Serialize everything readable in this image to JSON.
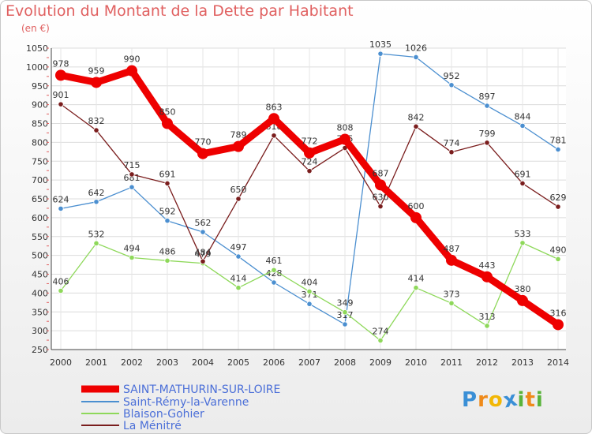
{
  "chart_data": {
    "type": "line",
    "title": "Evolution du Montant de la Dette par Habitant",
    "subtitle": "(en €)",
    "x": [
      "2000",
      "2001",
      "2002",
      "2003",
      "2004",
      "2005",
      "2006",
      "2007",
      "2008",
      "2009",
      "2010",
      "2011",
      "2012",
      "2013",
      "2014"
    ],
    "ylim": [
      250,
      1050
    ],
    "yticks": [
      250,
      300,
      350,
      400,
      450,
      500,
      550,
      600,
      650,
      700,
      750,
      800,
      850,
      900,
      950,
      1000,
      1050
    ],
    "grid": true,
    "legend_position": "bottom-left",
    "series": [
      {
        "name": "SAINT-MATHURIN-SUR-LOIRE",
        "color": "#ee0000",
        "values": [
          978,
          959,
          990,
          850,
          770,
          789,
          863,
          772,
          808,
          687,
          600,
          487,
          443,
          380,
          316
        ]
      },
      {
        "name": "Saint-Rémy-la-Varenne",
        "color": "#4b8fd0",
        "values": [
          624,
          642,
          681,
          592,
          562,
          497,
          428,
          371,
          317,
          1035,
          1026,
          952,
          897,
          844,
          781
        ]
      },
      {
        "name": "Blaison-Gohier",
        "color": "#8ed85a",
        "values": [
          406,
          532,
          494,
          486,
          479,
          414,
          461,
          404,
          349,
          274,
          414,
          373,
          313,
          533,
          490
        ]
      },
      {
        "name": "La Ménitré",
        "color": "#7a1d1d",
        "values": [
          901,
          832,
          715,
          691,
          484,
          650,
          818,
          724,
          785,
          630,
          842,
          774,
          799,
          691,
          629
        ]
      }
    ]
  },
  "logo": {
    "letters": [
      "P",
      "r",
      "o",
      "x",
      "i",
      "t",
      "i"
    ],
    "colors": [
      "#3a8fd6",
      "#ef8a1a",
      "#f2b705",
      "#3a8fd6",
      "#59b33a",
      "#ef8a1a",
      "#59b33a"
    ]
  }
}
